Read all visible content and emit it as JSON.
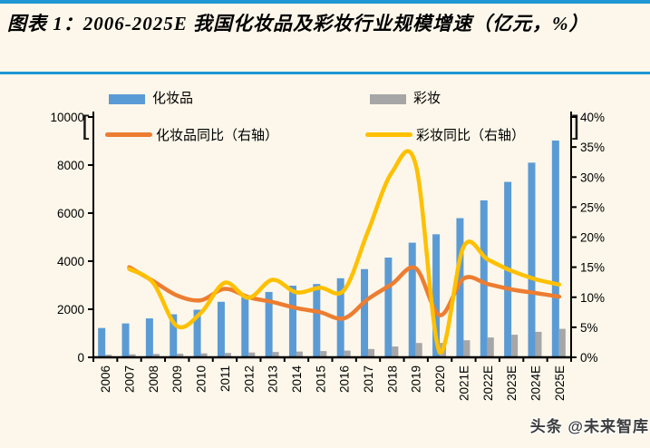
{
  "figure": {
    "title": "图表 1：2006-2025E 我国化妆品及彩妆行业规模增速（亿元，%）",
    "watermark": "头条 @未来智库",
    "left_bracket": "[",
    "right_bracket": "]"
  },
  "colors": {
    "background": "#fcf7ea",
    "rule_blue": "#1e97d3",
    "axis_black": "#000000",
    "cosmetics_bar": "#5B9BD5",
    "makeup_bar": "#A6A6A6",
    "cosmetics_yoy_line": "#ED7D31",
    "makeup_yoy_line": "#FFC000",
    "watermark_text": "#3d3d3d"
  },
  "chart_data": {
    "type": "bar+line combo",
    "legend_position": "top",
    "grid": false,
    "categories": [
      "2006",
      "2007",
      "2008",
      "2009",
      "2010",
      "2011",
      "2012",
      "2013",
      "2014",
      "2015",
      "2016",
      "2017",
      "2018",
      "2019",
      "2020",
      "2021E",
      "2022E",
      "2023E",
      "2024E",
      "2025E"
    ],
    "left_axis": {
      "label": "亿元",
      "min": 0,
      "max": 10000,
      "tick_step": 2000,
      "ticks": [
        "0",
        "2000",
        "4000",
        "6000",
        "8000",
        "10000"
      ]
    },
    "right_axis": {
      "label": "%",
      "min": 0,
      "max": 40,
      "tick_step": 5,
      "ticks": [
        "0%",
        "5%",
        "10%",
        "15%",
        "20%",
        "25%",
        "30%",
        "35%",
        "40%"
      ]
    },
    "series": [
      {
        "name": "化妆品",
        "type": "bar",
        "axis": "left",
        "color": "#5B9BD5",
        "values": [
          1220,
          1410,
          1620,
          1790,
          1980,
          2310,
          2500,
          2720,
          2980,
          3050,
          3290,
          3670,
          4150,
          4770,
          5120,
          5790,
          6530,
          7300,
          8100,
          9020
        ]
      },
      {
        "name": "彩妆",
        "type": "bar",
        "axis": "left",
        "color": "#A6A6A6",
        "values": [
          110,
          125,
          140,
          150,
          165,
          180,
          200,
          220,
          240,
          260,
          280,
          345,
          450,
          595,
          600,
          710,
          825,
          940,
          1060,
          1185
        ]
      },
      {
        "name": "化妆品同比（右轴）",
        "type": "line",
        "axis": "right",
        "color": "#ED7D31",
        "values": [
          null,
          15.0,
          12.7,
          10.3,
          9.5,
          11.4,
          10.0,
          9.2,
          8.2,
          7.5,
          6.5,
          9.7,
          12.2,
          14.8,
          7.0,
          13.1,
          12.2,
          11.3,
          10.7,
          10.1
        ]
      },
      {
        "name": "彩妆同比（右轴）",
        "type": "line",
        "axis": "right",
        "color": "#FFC000",
        "values": [
          null,
          14.7,
          12.4,
          5.2,
          7.4,
          12.4,
          9.9,
          12.9,
          10.8,
          11.6,
          11.2,
          21.0,
          30.8,
          32.0,
          0.8,
          18.4,
          16.3,
          14.4,
          13.0,
          12.1
        ]
      }
    ]
  }
}
